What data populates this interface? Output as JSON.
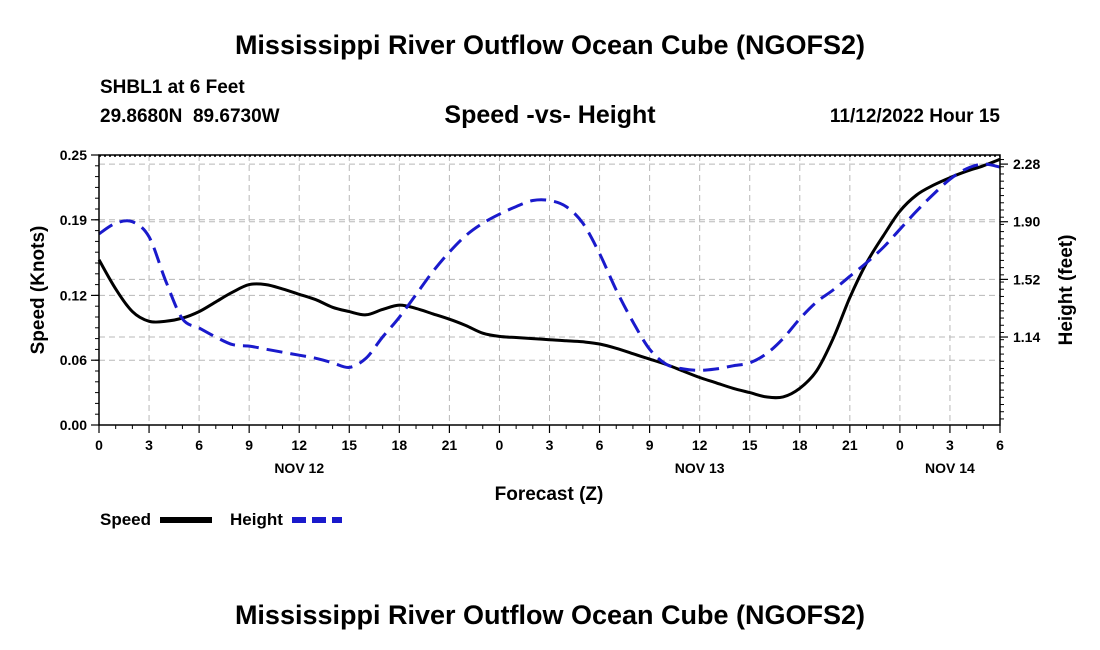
{
  "header": {
    "title": "Mississippi River Outflow Ocean Cube (NGOFS2)",
    "station": "SHBL1 at 6 Feet",
    "coords": "29.8680N  89.6730W",
    "datetime": "11/12/2022 Hour 15"
  },
  "footer": {
    "title": "Mississippi River Outflow Ocean Cube (NGOFS2)"
  },
  "chart_data": {
    "type": "line",
    "title": "Speed -vs- Height",
    "xlabel": "Forecast (Z)",
    "ylabel_left": "Speed (Knots)",
    "ylabel_right": "Height (feet)",
    "x_range_hours": [
      0,
      54
    ],
    "ylim_left": [
      0,
      0.25
    ],
    "ylim_right": [
      0.56,
      2.34
    ],
    "left_ticks": [
      "0.00",
      "0.06",
      "0.12",
      "0.19",
      "0.25"
    ],
    "right_ticks": [
      "1.14",
      "1.52",
      "1.90",
      "2.28"
    ],
    "x_tick_labels": [
      "0",
      "3",
      "6",
      "9",
      "12",
      "15",
      "18",
      "21",
      "0",
      "3",
      "6",
      "9",
      "12",
      "15",
      "18",
      "21",
      "0",
      "3",
      "6"
    ],
    "day_labels": [
      {
        "label": "NOV 12",
        "x": 12
      },
      {
        "label": "NOV 13",
        "x": 36
      },
      {
        "label": "NOV 14",
        "x": 51
      }
    ],
    "grid": true,
    "legend_position": "bottom-left",
    "series": [
      {
        "name": "Speed",
        "axis": "left",
        "color": "#000000",
        "style": "solid",
        "x": [
          0,
          1,
          2,
          3,
          4,
          5,
          6,
          7,
          8,
          9,
          10,
          11,
          12,
          13,
          14,
          15,
          16,
          17,
          18,
          19,
          20,
          21,
          22,
          23,
          24,
          25,
          26,
          27,
          28,
          29,
          30,
          31,
          32,
          33,
          34,
          35,
          36,
          37,
          38,
          39,
          40,
          41,
          42,
          43,
          44,
          45,
          46,
          47,
          48,
          49,
          50,
          51,
          52,
          53,
          54
        ],
        "values": [
          0.153,
          0.126,
          0.105,
          0.096,
          0.096,
          0.099,
          0.105,
          0.114,
          0.123,
          0.13,
          0.13,
          0.126,
          0.121,
          0.116,
          0.109,
          0.105,
          0.102,
          0.107,
          0.111,
          0.108,
          0.103,
          0.098,
          0.092,
          0.085,
          0.082,
          0.081,
          0.08,
          0.079,
          0.078,
          0.077,
          0.075,
          0.071,
          0.066,
          0.061,
          0.056,
          0.05,
          0.044,
          0.039,
          0.034,
          0.03,
          0.026,
          0.026,
          0.034,
          0.05,
          0.08,
          0.118,
          0.15,
          0.175,
          0.198,
          0.213,
          0.222,
          0.229,
          0.235,
          0.24,
          0.246
        ]
      },
      {
        "name": "Height",
        "axis": "right",
        "color": "#1a1acc",
        "style": "dashed",
        "x": [
          0,
          1,
          2,
          3,
          4,
          5,
          6,
          7,
          8,
          9,
          10,
          11,
          12,
          13,
          14,
          15,
          16,
          17,
          18,
          19,
          20,
          21,
          22,
          23,
          24,
          25,
          26,
          27,
          28,
          29,
          30,
          31,
          32,
          33,
          34,
          35,
          36,
          37,
          38,
          39,
          40,
          41,
          42,
          43,
          44,
          45,
          46,
          47,
          48,
          49,
          50,
          51,
          52,
          53,
          54
        ],
        "values": [
          1.82,
          1.89,
          1.9,
          1.8,
          1.51,
          1.26,
          1.2,
          1.14,
          1.09,
          1.08,
          1.06,
          1.04,
          1.02,
          1.0,
          0.97,
          0.94,
          1.0,
          1.14,
          1.27,
          1.42,
          1.57,
          1.7,
          1.81,
          1.89,
          1.95,
          2.0,
          2.04,
          2.04,
          2.0,
          1.89,
          1.69,
          1.45,
          1.24,
          1.06,
          0.96,
          0.93,
          0.92,
          0.93,
          0.95,
          0.97,
          1.03,
          1.13,
          1.26,
          1.37,
          1.45,
          1.54,
          1.63,
          1.73,
          1.85,
          1.97,
          2.08,
          2.18,
          2.25,
          2.28,
          2.26
        ]
      }
    ]
  }
}
